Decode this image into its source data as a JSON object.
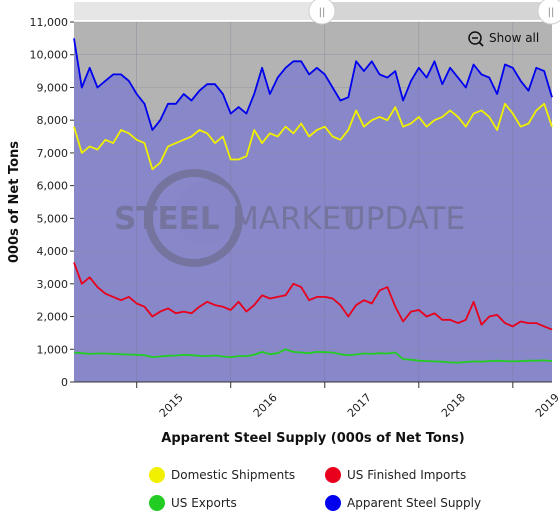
{
  "chart_data": {
    "type": "line",
    "xlabel": "Apparent Steel Supply (000s of Net Tons)",
    "ylabel": "000s of Net Tons",
    "ylim": [
      0,
      11000
    ],
    "y_ticks": [
      0,
      1000,
      2000,
      3000,
      4000,
      5000,
      6000,
      7000,
      8000,
      9000,
      10000,
      11000
    ],
    "y_tick_labels": [
      "0",
      "1,000",
      "2,000",
      "3,000",
      "4,000",
      "5,000",
      "6,000",
      "7,000",
      "8,000",
      "9,000",
      "10,000",
      "11,000"
    ],
    "xlim": [
      "2014-05",
      "2019-06"
    ],
    "x_tick_labels": [
      "2015",
      "2016",
      "2017",
      "2018",
      "2019"
    ],
    "grid": true,
    "legend_placement": "bottom",
    "x": [
      "2014-05",
      "2014-06",
      "2014-07",
      "2014-08",
      "2014-09",
      "2014-10",
      "2014-11",
      "2014-12",
      "2015-01",
      "2015-02",
      "2015-03",
      "2015-04",
      "2015-05",
      "2015-06",
      "2015-07",
      "2015-08",
      "2015-09",
      "2015-10",
      "2015-11",
      "2015-12",
      "2016-01",
      "2016-02",
      "2016-03",
      "2016-04",
      "2016-05",
      "2016-06",
      "2016-07",
      "2016-08",
      "2016-09",
      "2016-10",
      "2016-11",
      "2016-12",
      "2017-01",
      "2017-02",
      "2017-03",
      "2017-04",
      "2017-05",
      "2017-06",
      "2017-07",
      "2017-08",
      "2017-09",
      "2017-10",
      "2017-11",
      "2017-12",
      "2018-01",
      "2018-02",
      "2018-03",
      "2018-04",
      "2018-05",
      "2018-06",
      "2018-07",
      "2018-08",
      "2018-09",
      "2018-10",
      "2018-11",
      "2018-12",
      "2019-01",
      "2019-02",
      "2019-03",
      "2019-04",
      "2019-05",
      "2019-06"
    ],
    "series": [
      {
        "name": "Domestic Shipments",
        "color": "#f0f000",
        "values": [
          7800,
          7000,
          7200,
          7100,
          7400,
          7300,
          7700,
          7600,
          7400,
          7300,
          6500,
          6700,
          7200,
          7300,
          7400,
          7500,
          7700,
          7600,
          7300,
          7500,
          6800,
          6800,
          6900,
          7700,
          7300,
          7600,
          7500,
          7800,
          7600,
          7900,
          7500,
          7700,
          7800,
          7500,
          7400,
          7700,
          8300,
          7800,
          8000,
          8100,
          8000,
          8400,
          7800,
          7900,
          8100,
          7800,
          8000,
          8100,
          8300,
          8100,
          7800,
          8200,
          8300,
          8100,
          7700,
          8500,
          8200,
          7800,
          7900,
          8300,
          8500,
          7800
        ]
      },
      {
        "name": "US Finished Imports",
        "color": "#e8001c",
        "values": [
          3650,
          3000,
          3200,
          2900,
          2700,
          2600,
          2500,
          2600,
          2400,
          2300,
          2000,
          2150,
          2250,
          2100,
          2150,
          2100,
          2300,
          2450,
          2350,
          2300,
          2200,
          2450,
          2150,
          2350,
          2650,
          2550,
          2600,
          2650,
          3000,
          2900,
          2500,
          2600,
          2600,
          2550,
          2350,
          2000,
          2350,
          2500,
          2400,
          2800,
          2900,
          2300,
          1850,
          2150,
          2200,
          2000,
          2100,
          1900,
          1900,
          1800,
          1900,
          2450,
          1750,
          2000,
          2050,
          1800,
          1700,
          1850,
          1800,
          1800,
          1700,
          1600
        ]
      },
      {
        "name": "US Exports",
        "color": "#22cc22",
        "values": [
          900,
          880,
          860,
          870,
          870,
          860,
          850,
          840,
          830,
          820,
          760,
          780,
          800,
          810,
          830,
          820,
          800,
          790,
          810,
          780,
          760,
          790,
          790,
          830,
          920,
          850,
          880,
          1000,
          920,
          900,
          880,
          920,
          910,
          900,
          850,
          820,
          840,
          870,
          860,
          880,
          870,
          900,
          700,
          680,
          650,
          640,
          630,
          620,
          600,
          590,
          610,
          630,
          620,
          640,
          650,
          640,
          630,
          640,
          650,
          650,
          660,
          640
        ]
      },
      {
        "name": "Apparent Steel Supply",
        "color": "#0000ee",
        "values": [
          10500,
          9000,
          9600,
          9000,
          9200,
          9400,
          9400,
          9200,
          8800,
          8500,
          7700,
          8000,
          8500,
          8500,
          8800,
          8600,
          8900,
          9100,
          9100,
          8800,
          8200,
          8400,
          8200,
          8800,
          9600,
          8800,
          9300,
          9600,
          9800,
          9800,
          9400,
          9600,
          9400,
          9000,
          8600,
          8700,
          9800,
          9500,
          9800,
          9400,
          9300,
          9500,
          8600,
          9200,
          9600,
          9300,
          9800,
          9100,
          9600,
          9300,
          9000,
          9700,
          9400,
          9300,
          8800,
          9700,
          9600,
          9200,
          8900,
          9600,
          9500,
          8700
        ]
      }
    ]
  },
  "zoom": {
    "label": "Show all",
    "icon": "zoom-out-icon"
  },
  "navigator": {
    "handle_icon": "grip-icon"
  },
  "watermark": {
    "bold": "STEEL",
    "light_part1": "MARKET",
    "light_part2": "UPDATE"
  }
}
